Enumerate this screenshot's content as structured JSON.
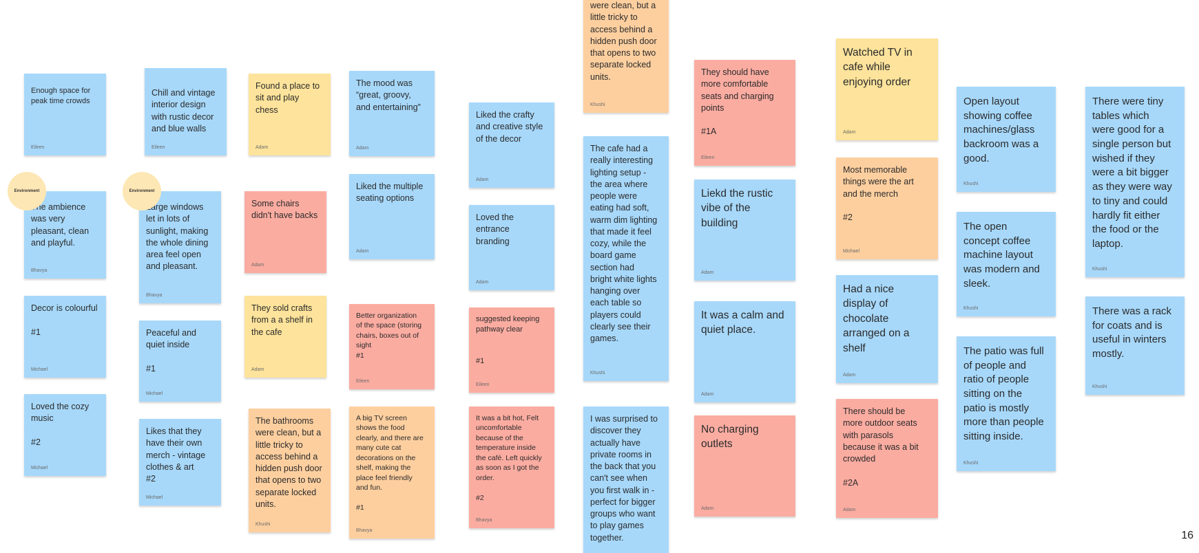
{
  "stickers": [
    "Environment",
    "Environment"
  ],
  "page_number": "16",
  "notes": [
    {
      "color": "blue",
      "text": "Enough space for\npeak time crowds",
      "author": "Eileen"
    },
    {
      "color": "blue",
      "text": "The ambience\nwas very\npleasant, clean\nand playful.",
      "author": "Bhavya"
    },
    {
      "color": "blue",
      "text": "Decor is colourful\n\n#1",
      "author": "Michael"
    },
    {
      "color": "blue",
      "text": "Loved the cozy\nmusic\n\n#2",
      "author": "Michael"
    },
    {
      "color": "blue",
      "text": "Chill and vintage\ninterior design\nwith rustic decor\nand blue walls",
      "author": "Eileen"
    },
    {
      "color": "blue",
      "text": "Large windows\nlet in lots of\nsunlight, making\nthe whole dining\narea feel open\nand pleasant.",
      "author": "Bhavya"
    },
    {
      "color": "blue",
      "text": "Peaceful and\nquiet inside\n\n#1",
      "author": "Michael"
    },
    {
      "color": "blue",
      "text": "Likes that they\nhave their own\nmerch - vintage\nclothes & art\n#2",
      "author": "Michael"
    },
    {
      "color": "yellow",
      "text": "Found a place to\nsit and play chess",
      "author": "Adam"
    },
    {
      "color": "red",
      "text": "Some chairs\ndidn't have backs",
      "author": "Adam"
    },
    {
      "color": "yellow",
      "text": "They sold crafts\nfrom a a shelf in\nthe cafe",
      "author": "Adam"
    },
    {
      "color": "orange",
      "text": "The bathrooms\nwere clean, but a\nlittle tricky to\naccess behind a\nhidden push door\nthat opens to two\nseparate locked\nunits.",
      "author": "Khushi"
    },
    {
      "color": "blue",
      "text": "The mood was\n“great, groovy,\nand entertaining”",
      "author": "Adam"
    },
    {
      "color": "blue",
      "text": "Liked the multiple\nseating options",
      "author": "Adam"
    },
    {
      "color": "red",
      "text": "Better organization\nof the space (storing\nchairs, boxes out of\nsight\n#1",
      "author": "Eileen"
    },
    {
      "color": "orange",
      "text": "A big TV screen\nshows the food\nclearly, and there are\nmany cute cat\ndecorations on the\nshelf, making the\nplace feel friendly\nand fun.\n\n#1",
      "author": "Bhavya"
    },
    {
      "color": "blue",
      "text": "Liked the crafty\nand creative style\nof the decor",
      "author": "Adam"
    },
    {
      "color": "blue",
      "text": "Loved the\nentrance\nbranding",
      "author": "Adam"
    },
    {
      "color": "red",
      "text": "suggested keeping\npathway clear\n\n\n#1",
      "author": "Eileen"
    },
    {
      "color": "red",
      "text": "It was a bit hot, Felt\nuncomfortable\nbecause of the\ntemperature inside\nthe café. Left quickly\nas soon as I got the\norder.\n\n#2",
      "author": "Bhavya"
    },
    {
      "color": "orange",
      "text": "were clean, but a\nlittle tricky to\naccess behind a\nhidden push door\nthat opens to two\nseparate locked\nunits.",
      "author": "Khushi"
    },
    {
      "color": "blue",
      "text": "The cafe had a\nreally interesting\nlighting setup -\nthe area where\npeople were\neating had soft,\nwarm dim lighting\nthat made it feel\ncozy, while the\nboard game\nsection had\nbright white lights\nhanging over\neach table so\nplayers could\nclearly see their\ngames.",
      "author": "Khushi"
    },
    {
      "color": "blue",
      "text": "I was surprised to\ndiscover they\nactually have\nprivate rooms in\nthe back that you\ncan't see when\nyou first walk in -\nperfect for bigger\ngroups who want\nto play games\ntogether.",
      "author": ""
    },
    {
      "color": "red",
      "text": "They should have\nmore comfortable\nseats and charging\npoints\n\n#1A",
      "author": "Eileen"
    },
    {
      "color": "blue",
      "text": "Liekd the rustic\nvibe of the\nbuilding",
      "author": "Adam"
    },
    {
      "color": "blue",
      "text": "It was a calm and\nquiet place.",
      "author": "Adam"
    },
    {
      "color": "red",
      "text": "No charging\noutlets",
      "author": "Adam"
    },
    {
      "color": "yellow",
      "text": "Watched TV in\ncafe while\nenjoying order",
      "author": "Adam"
    },
    {
      "color": "orange",
      "text": "Most memorable\nthings were the art\nand the merch\n\n#2",
      "author": "Michael"
    },
    {
      "color": "blue",
      "text": "Had a nice\ndisplay of\nchocolate\narranged on a\nshelf",
      "author": "Adam"
    },
    {
      "color": "red",
      "text": "There should be\nmore outdoor seats\nwith parasols\nbecause it was a bit\ncrowded\n\n#2A",
      "author": "Adam"
    },
    {
      "color": "blue",
      "text": "Open layout\nshowing coffee\nmachines/glass\nbackroom was a\ngood.",
      "author": "Khushi"
    },
    {
      "color": "blue",
      "text": "The open\nconcept coffee\nmachine layout\nwas modern and\nsleek.",
      "author": "Khushi"
    },
    {
      "color": "blue",
      "text": "The patio was full\nof people and\nratio of people\nsitting on the\npatio is mostly\nmore than people\nsitting inside.",
      "author": "Khushi"
    },
    {
      "color": "blue",
      "text": "There were tiny\ntables which\nwere good for a\nsingle person but\nwished if they\nwere a bit bigger\nas they were way\nto tiny and could\nhardly fit either\nthe food or the\nlaptop.",
      "author": "Khushi"
    },
    {
      "color": "blue",
      "text": "There was a rack\nfor coats and is\nuseful in winters\nmostly.",
      "author": "Khushi"
    }
  ]
}
